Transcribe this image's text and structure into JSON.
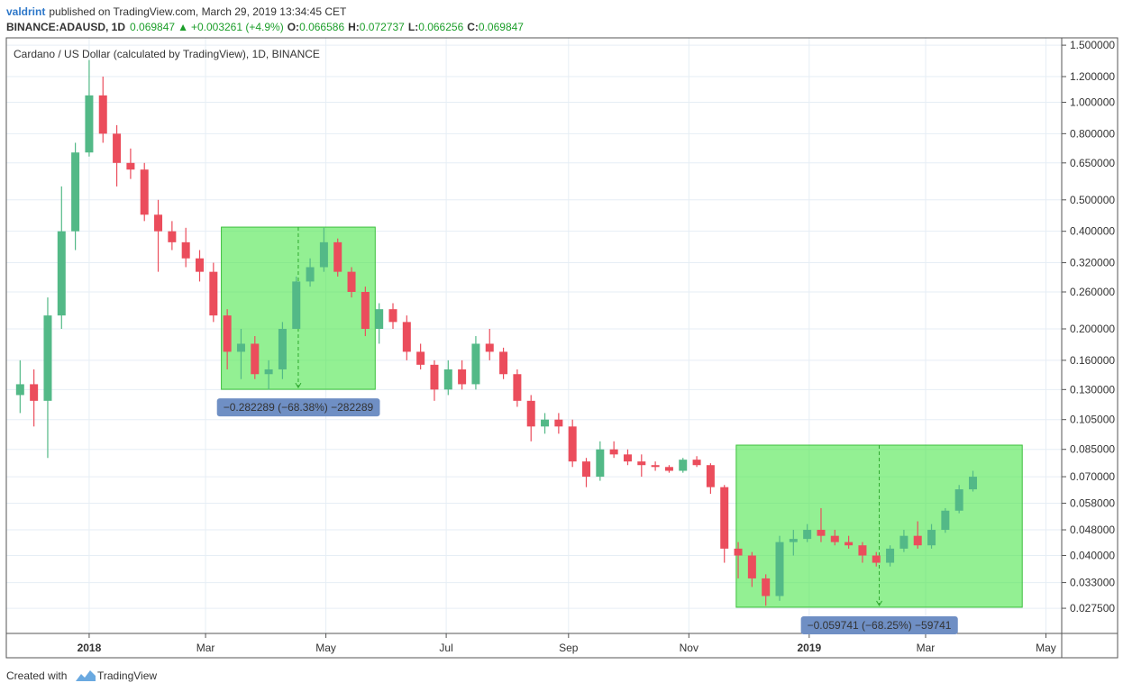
{
  "header": {
    "user": "valdrint",
    "published": "published on TradingView.com, March 29, 2019 13:34:45 CET",
    "symbol": "BINANCE:ADAUSD, 1D",
    "last": "0.069847",
    "arrow": "▲",
    "change": "+0.003261 (+4.9%)",
    "ohlc": [
      {
        "label": "O:",
        "value": "0.066586"
      },
      {
        "label": "H:",
        "value": "0.072737"
      },
      {
        "label": "L:",
        "value": "0.066256"
      },
      {
        "label": "C:",
        "value": "0.069847"
      }
    ]
  },
  "footer": {
    "created": "Created with",
    "brand": "TradingView"
  },
  "chart_data": {
    "type": "candlestick",
    "title": "Cardano / US Dollar (calculated by TradingView), 1D, BINANCE",
    "up_color": "#53b987",
    "down_color": "#eb4d5c",
    "log_scale": true,
    "grid": true,
    "xlim": [
      "2017-11-20",
      "2019-05-09"
    ],
    "xticks": [
      {
        "value": "2018-01-01",
        "label": "2018"
      },
      {
        "value": "2018-03-01",
        "label": "Mar"
      },
      {
        "value": "2018-05-01",
        "label": "May"
      },
      {
        "value": "2018-07-01",
        "label": "Jul"
      },
      {
        "value": "2018-09-01",
        "label": "Sep"
      },
      {
        "value": "2018-11-01",
        "label": "Nov"
      },
      {
        "value": "2019-01-01",
        "label": "2019"
      },
      {
        "value": "2019-03-01",
        "label": "Mar"
      },
      {
        "value": "2019-05-01",
        "label": "May"
      }
    ],
    "ylim": [
      0.023,
      1.58
    ],
    "yticks": [
      {
        "value": 1.5,
        "label": "1.500000"
      },
      {
        "value": 1.2,
        "label": "1.200000"
      },
      {
        "value": 1.0,
        "label": "1.000000"
      },
      {
        "value": 0.8,
        "label": "0.800000"
      },
      {
        "value": 0.65,
        "label": "0.650000"
      },
      {
        "value": 0.5,
        "label": "0.500000"
      },
      {
        "value": 0.4,
        "label": "0.400000"
      },
      {
        "value": 0.32,
        "label": "0.320000"
      },
      {
        "value": 0.26,
        "label": "0.260000"
      },
      {
        "value": 0.2,
        "label": "0.200000"
      },
      {
        "value": 0.16,
        "label": "0.160000"
      },
      {
        "value": 0.13,
        "label": "0.130000"
      },
      {
        "value": 0.105,
        "label": "0.105000"
      },
      {
        "value": 0.085,
        "label": "0.085000"
      },
      {
        "value": 0.07,
        "label": "0.070000"
      },
      {
        "value": 0.058,
        "label": "0.058000"
      },
      {
        "value": 0.048,
        "label": "0.048000"
      },
      {
        "value": 0.04,
        "label": "0.040000"
      },
      {
        "value": 0.033,
        "label": "0.033000"
      },
      {
        "value": 0.0275,
        "label": "0.027500"
      }
    ],
    "x": [
      "2017-11-27",
      "2017-12-04",
      "2017-12-11",
      "2017-12-18",
      "2017-12-25",
      "2018-01-01",
      "2018-01-08",
      "2018-01-15",
      "2018-01-22",
      "2018-01-29",
      "2018-02-05",
      "2018-02-12",
      "2018-02-19",
      "2018-02-26",
      "2018-03-05",
      "2018-03-12",
      "2018-03-19",
      "2018-03-26",
      "2018-04-02",
      "2018-04-09",
      "2018-04-16",
      "2018-04-23",
      "2018-04-30",
      "2018-05-07",
      "2018-05-14",
      "2018-05-21",
      "2018-05-28",
      "2018-06-04",
      "2018-06-11",
      "2018-06-18",
      "2018-06-25",
      "2018-07-02",
      "2018-07-09",
      "2018-07-16",
      "2018-07-23",
      "2018-07-30",
      "2018-08-06",
      "2018-08-13",
      "2018-08-20",
      "2018-08-27",
      "2018-09-03",
      "2018-09-10",
      "2018-09-17",
      "2018-09-24",
      "2018-10-01",
      "2018-10-08",
      "2018-10-15",
      "2018-10-22",
      "2018-10-29",
      "2018-11-05",
      "2018-11-12",
      "2018-11-19",
      "2018-11-26",
      "2018-12-03",
      "2018-12-10",
      "2018-12-17",
      "2018-12-24",
      "2018-12-31",
      "2019-01-07",
      "2019-01-14",
      "2019-01-21",
      "2019-01-28",
      "2019-02-04",
      "2019-02-11",
      "2019-02-18",
      "2019-02-25",
      "2019-03-04",
      "2019-03-11",
      "2019-03-18",
      "2019-03-25"
    ],
    "open": [
      0.125,
      0.135,
      0.12,
      0.22,
      0.4,
      0.7,
      1.05,
      0.8,
      0.65,
      0.62,
      0.45,
      0.4,
      0.37,
      0.33,
      0.3,
      0.22,
      0.17,
      0.18,
      0.145,
      0.15,
      0.2,
      0.28,
      0.31,
      0.37,
      0.3,
      0.26,
      0.2,
      0.23,
      0.21,
      0.17,
      0.155,
      0.13,
      0.15,
      0.135,
      0.18,
      0.17,
      0.145,
      0.12,
      0.1,
      0.105,
      0.1,
      0.078,
      0.07,
      0.085,
      0.082,
      0.078,
      0.076,
      0.075,
      0.073,
      0.079,
      0.076,
      0.065,
      0.042,
      0.04,
      0.034,
      0.03,
      0.044,
      0.045,
      0.048,
      0.046,
      0.044,
      0.043,
      0.04,
      0.038,
      0.042,
      0.046,
      0.043,
      0.048,
      0.055,
      0.064
    ],
    "high": [
      0.16,
      0.15,
      0.25,
      0.55,
      0.75,
      1.35,
      1.2,
      0.85,
      0.72,
      0.65,
      0.5,
      0.43,
      0.41,
      0.35,
      0.32,
      0.23,
      0.2,
      0.19,
      0.16,
      0.21,
      0.29,
      0.33,
      0.41,
      0.38,
      0.31,
      0.27,
      0.24,
      0.24,
      0.22,
      0.18,
      0.16,
      0.16,
      0.16,
      0.19,
      0.2,
      0.175,
      0.15,
      0.125,
      0.11,
      0.11,
      0.105,
      0.08,
      0.09,
      0.09,
      0.085,
      0.082,
      0.078,
      0.076,
      0.08,
      0.081,
      0.077,
      0.066,
      0.044,
      0.041,
      0.035,
      0.046,
      0.048,
      0.05,
      0.056,
      0.048,
      0.046,
      0.044,
      0.041,
      0.043,
      0.048,
      0.051,
      0.05,
      0.056,
      0.066,
      0.073
    ],
    "low": [
      0.11,
      0.1,
      0.08,
      0.2,
      0.35,
      0.68,
      0.75,
      0.55,
      0.58,
      0.43,
      0.3,
      0.35,
      0.31,
      0.28,
      0.21,
      0.15,
      0.14,
      0.14,
      0.13,
      0.14,
      0.2,
      0.27,
      0.3,
      0.29,
      0.25,
      0.19,
      0.18,
      0.2,
      0.16,
      0.15,
      0.12,
      0.125,
      0.13,
      0.13,
      0.16,
      0.14,
      0.115,
      0.09,
      0.095,
      0.095,
      0.075,
      0.065,
      0.068,
      0.08,
      0.076,
      0.07,
      0.073,
      0.072,
      0.072,
      0.075,
      0.062,
      0.038,
      0.034,
      0.032,
      0.028,
      0.029,
      0.04,
      0.044,
      0.044,
      0.043,
      0.042,
      0.038,
      0.037,
      0.037,
      0.041,
      0.042,
      0.042,
      0.047,
      0.054,
      0.063
    ],
    "close": [
      0.135,
      0.12,
      0.22,
      0.4,
      0.7,
      1.05,
      0.8,
      0.65,
      0.62,
      0.45,
      0.4,
      0.37,
      0.33,
      0.3,
      0.22,
      0.17,
      0.18,
      0.145,
      0.15,
      0.2,
      0.28,
      0.31,
      0.37,
      0.3,
      0.26,
      0.2,
      0.23,
      0.21,
      0.17,
      0.155,
      0.13,
      0.15,
      0.135,
      0.18,
      0.17,
      0.145,
      0.12,
      0.1,
      0.105,
      0.1,
      0.078,
      0.07,
      0.085,
      0.082,
      0.078,
      0.076,
      0.075,
      0.073,
      0.079,
      0.076,
      0.065,
      0.042,
      0.04,
      0.034,
      0.03,
      0.044,
      0.045,
      0.048,
      0.046,
      0.044,
      0.043,
      0.04,
      0.038,
      0.042,
      0.046,
      0.043,
      0.048,
      0.055,
      0.064,
      0.07
    ],
    "ranges": [
      {
        "x": [
          "2018-03-09",
          "2018-05-26"
        ],
        "y": [
          0.412,
          0.1302
        ],
        "label": "−0.282289 (−68.38%) −282289"
      },
      {
        "x": [
          "2018-11-25",
          "2019-04-19"
        ],
        "y": [
          0.0876,
          0.0277
        ],
        "label": "−0.059741 (−68.25%) −59741"
      }
    ],
    "range_color": "#4be64b",
    "range_label_color": "#6f8fc4"
  }
}
